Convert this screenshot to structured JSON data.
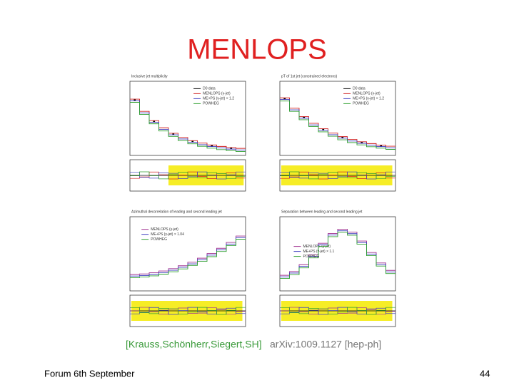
{
  "slide": {
    "title": "MENLOPS",
    "panels": [
      {
        "title": "Inclusive jet multiplicity",
        "legend": [
          {
            "label": "D0 data",
            "color": "#000000"
          },
          {
            "label": "MENLOPS (γ-jet)",
            "color": "#d02020"
          },
          {
            "label": "ME+PS (γ-jet) × 1.2",
            "color": "#4040c0"
          },
          {
            "label": "POWHEG",
            "color": "#30a030"
          }
        ]
      },
      {
        "title": "pT of 1st jet (constrained electrons)",
        "legend": [
          {
            "label": "D0 data",
            "color": "#000000"
          },
          {
            "label": "MENLOPS (γ-jet)",
            "color": "#d02020"
          },
          {
            "label": "ME+PS (γ-jet) × 1.2",
            "color": "#4040c0"
          },
          {
            "label": "POWHEG",
            "color": "#30a030"
          }
        ]
      },
      {
        "title": "Azimuthal decorrelation of leading and second leading jet",
        "legend": [
          {
            "label": "MENLOPS (γ-jet)",
            "color": "#a03090"
          },
          {
            "label": "ME+PS (γ-jet) × 1.04",
            "color": "#4040c0"
          },
          {
            "label": "POWHEG",
            "color": "#30a030"
          }
        ]
      },
      {
        "title": "Separation between leading and second leading jet",
        "legend": [
          {
            "label": "MENLOPS (γ-jet)",
            "color": "#a03090"
          },
          {
            "label": "ME+PS (γ-jet) × 1.1",
            "color": "#4040c0"
          },
          {
            "label": "POWHEG",
            "color": "#30a030"
          }
        ]
      }
    ],
    "citation": {
      "authors": "[Krauss,Schönherr,Siegert,SH]",
      "reference": "arXiv:1009.1127 [hep-ph]"
    },
    "footer": {
      "left": "Forum 6th September",
      "page": "44"
    }
  }
}
